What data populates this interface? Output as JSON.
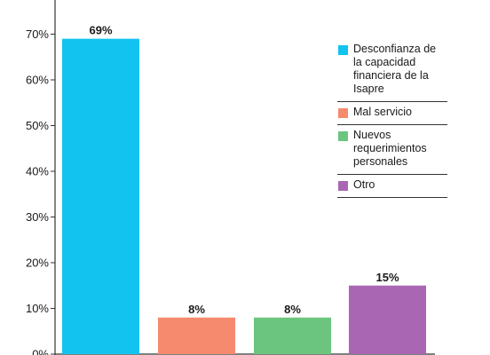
{
  "chart_data": {
    "type": "bar",
    "categories": [
      "Desconfianza de la capacidad financiera de la Isapre",
      "Mal servicio",
      "Nuevos requerimientos personales",
      "Otro"
    ],
    "values": [
      69,
      8,
      8,
      15
    ],
    "data_labels": [
      "69%",
      "8%",
      "8%",
      "15%"
    ],
    "colors": [
      "#12c3f0",
      "#f58a6e",
      "#6cc57f",
      "#a967b3"
    ],
    "y_ticks": [
      0,
      10,
      20,
      30,
      40,
      50,
      60,
      70
    ],
    "y_tick_labels": [
      "0%",
      "10%",
      "20%",
      "30%",
      "40%",
      "50%",
      "60%",
      "70%"
    ],
    "ylim": [
      0,
      76
    ],
    "title": "",
    "xlabel": "",
    "ylabel": "",
    "grid": false,
    "legend_position": "top-right"
  },
  "legend": {
    "items": [
      {
        "label": "Desconfianza de la capacidad financiera de la Isapre",
        "color": "#12c3f0"
      },
      {
        "label": "Mal servicio",
        "color": "#f58a6e"
      },
      {
        "label": "Nuevos requerimientos personales",
        "color": "#6cc57f"
      },
      {
        "label": "Otro",
        "color": "#a967b3"
      }
    ]
  }
}
